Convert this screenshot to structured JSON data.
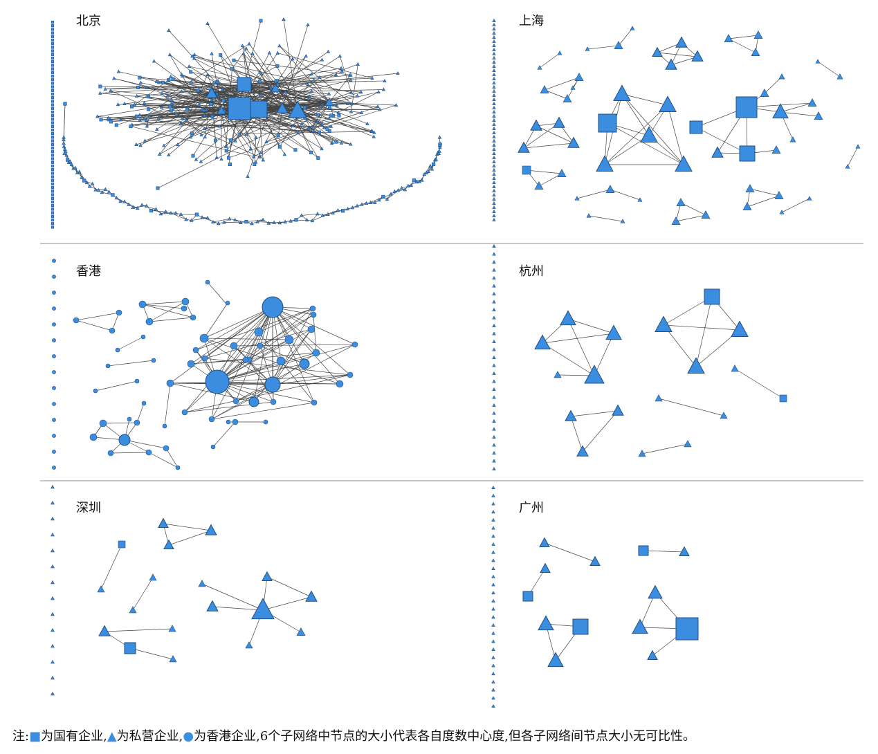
{
  "panels": [
    {
      "id": "beijing",
      "title": "北京"
    },
    {
      "id": "shanghai",
      "title": "上海"
    },
    {
      "id": "hongkong",
      "title": "香港"
    },
    {
      "id": "hangzhou",
      "title": "杭州"
    },
    {
      "id": "shenzhen",
      "title": "深圳"
    },
    {
      "id": "guangzhou",
      "title": "广州"
    }
  ],
  "note": {
    "prefix": "注:",
    "state_symbol": "■",
    "state_label": "为国有企业,",
    "private_symbol": "▲",
    "private_label": "为私营企业,",
    "hk_symbol": "●",
    "hk_label": "为香港企业,6个子网络中节点的大小代表各自度数中心度,但各子网络间节点大小无可比性。"
  },
  "colors": {
    "node_fill": "#3b8de0",
    "node_stroke": "#1f4f86",
    "edge": "#444444",
    "divider": "#888888"
  },
  "legend": {
    "state": "square",
    "private": "triangle",
    "hongkong": "circle"
  }
}
